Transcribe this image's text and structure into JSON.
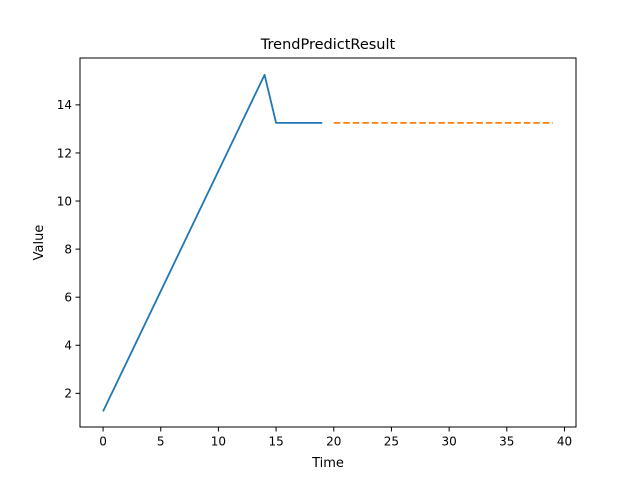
{
  "chart_data": {
    "type": "line",
    "title": "TrendPredictResult",
    "xlabel": "Time",
    "ylabel": "Value",
    "xlim": [
      -2,
      41
    ],
    "ylim": [
      0.6,
      15.95
    ],
    "xticks": [
      0,
      5,
      10,
      15,
      20,
      25,
      30,
      35,
      40
    ],
    "yticks": [
      2,
      4,
      6,
      8,
      10,
      12,
      14
    ],
    "grid": false,
    "series": [
      {
        "color": "#1f77b4",
        "style": "solid",
        "x": [
          0,
          14,
          15,
          16,
          17,
          18,
          19
        ],
        "y": [
          1.25,
          15.25,
          13.25,
          13.25,
          13.25,
          13.25,
          13.25
        ]
      },
      {
        "color": "#ff7f0e",
        "style": "dashed",
        "x": [
          20,
          39
        ],
        "y": [
          13.25,
          13.25
        ]
      }
    ]
  }
}
